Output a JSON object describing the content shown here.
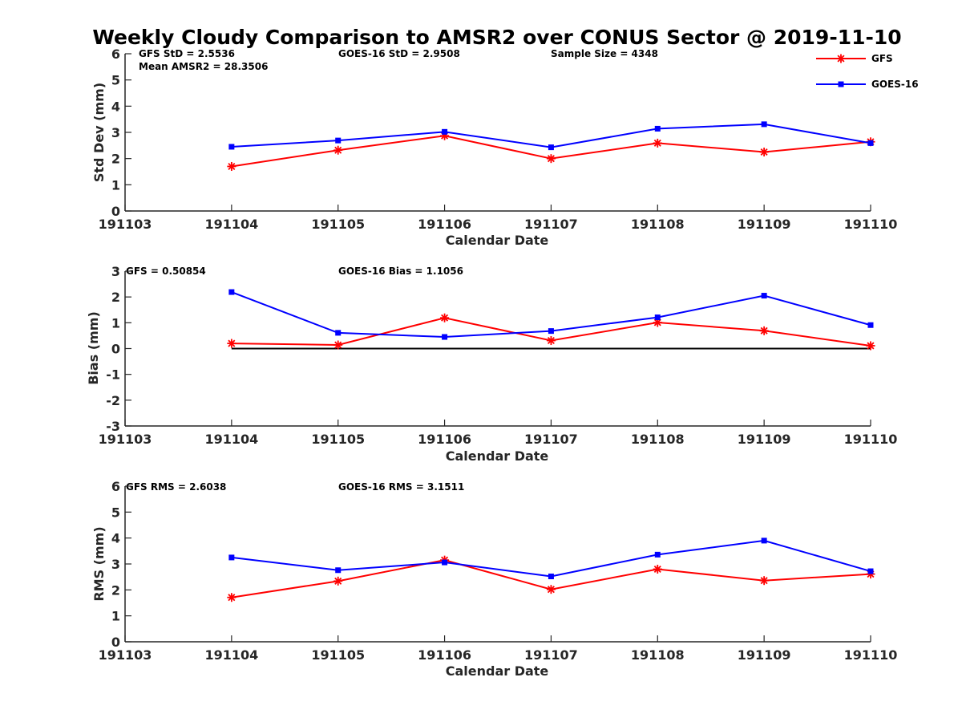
{
  "title": "Weekly Cloudy Comparison to AMSR2 over CONUS Sector @ 2019-11-10",
  "legend": [
    {
      "name": "GFS",
      "color": "#ff0000",
      "marker": "asterisk"
    },
    {
      "name": "GOES-16",
      "color": "#0000ff",
      "marker": "square"
    }
  ],
  "chart_data": [
    {
      "type": "line",
      "title": "Weekly Cloudy Comparison to AMSR2 over CONUS Sector @ 2019-11-10",
      "xlabel": "Calendar Date",
      "ylabel": "Std Dev (mm)",
      "x_tick_labels": [
        "191103",
        "191104",
        "191105",
        "191106",
        "191107",
        "191108",
        "191109",
        "191110"
      ],
      "x": [
        "191104",
        "191105",
        "191106",
        "191107",
        "191108",
        "191109",
        "191110"
      ],
      "ylim": [
        0,
        6
      ],
      "yticks": [
        0,
        1,
        2,
        3,
        4,
        5,
        6
      ],
      "zero_line": false,
      "annotations": [
        "GFS StD = 2.5536",
        "Mean AMSR2 = 28.3506",
        "GOES-16 StD = 2.9508",
        "Sample Size = 4348"
      ],
      "series": [
        {
          "name": "GFS",
          "color": "#ff0000",
          "marker": "asterisk",
          "values": [
            1.7,
            2.32,
            2.87,
            2.0,
            2.59,
            2.25,
            2.64
          ]
        },
        {
          "name": "GOES-16",
          "color": "#0000ff",
          "marker": "square",
          "values": [
            2.45,
            2.69,
            3.02,
            2.43,
            3.14,
            3.31,
            2.59
          ]
        }
      ]
    },
    {
      "type": "line",
      "xlabel": "Calendar Date",
      "ylabel": "Bias (mm)",
      "x_tick_labels": [
        "191103",
        "191104",
        "191105",
        "191106",
        "191107",
        "191108",
        "191109",
        "191110"
      ],
      "x": [
        "191104",
        "191105",
        "191106",
        "191107",
        "191108",
        "191109",
        "191110"
      ],
      "ylim": [
        -3,
        3
      ],
      "yticks": [
        -3,
        -2,
        -1,
        0,
        1,
        2,
        3
      ],
      "zero_line": true,
      "annotations": [
        "GFS = 0.50854",
        "GOES-16 Bias  = 1.1056"
      ],
      "series": [
        {
          "name": "GFS",
          "color": "#ff0000",
          "marker": "asterisk",
          "values": [
            0.2,
            0.14,
            1.19,
            0.31,
            1.01,
            0.69,
            0.11
          ]
        },
        {
          "name": "GOES-16",
          "color": "#0000ff",
          "marker": "square",
          "values": [
            2.19,
            0.61,
            0.45,
            0.68,
            1.21,
            2.05,
            0.91
          ]
        }
      ]
    },
    {
      "type": "line",
      "xlabel": "Calendar Date",
      "ylabel": "RMS (mm)",
      "x_tick_labels": [
        "191103",
        "191104",
        "191105",
        "191106",
        "191107",
        "191108",
        "191109",
        "191110"
      ],
      "x": [
        "191104",
        "191105",
        "191106",
        "191107",
        "191108",
        "191109",
        "191110"
      ],
      "ylim": [
        0,
        6
      ],
      "yticks": [
        0,
        1,
        2,
        3,
        4,
        5,
        6
      ],
      "zero_line": false,
      "annotations": [
        "GFS RMS = 2.6038",
        "GOES-16 RMS = 3.1511"
      ],
      "series": [
        {
          "name": "GFS",
          "color": "#ff0000",
          "marker": "asterisk",
          "values": [
            1.71,
            2.34,
            3.15,
            2.02,
            2.8,
            2.36,
            2.61
          ]
        },
        {
          "name": "GOES-16",
          "color": "#0000ff",
          "marker": "square",
          "values": [
            3.25,
            2.76,
            3.06,
            2.52,
            3.36,
            3.9,
            2.72
          ]
        }
      ]
    }
  ]
}
